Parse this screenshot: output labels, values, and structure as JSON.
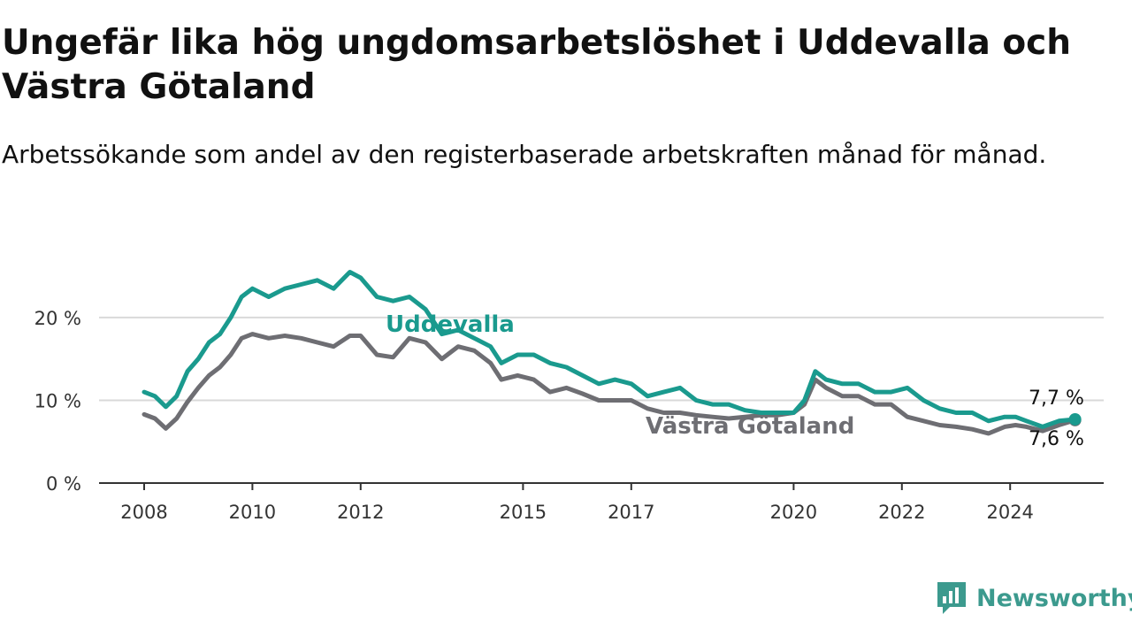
{
  "title": "Ungefär lika hög ungdomsarbetslöshet i Uddevalla och Västra Götaland",
  "subtitle": "Arbetssökande som andel av den registerbaserade arbetskraften månad för månad.",
  "brand": {
    "name": "Newsworthy",
    "color": "#3c9a8e"
  },
  "chart_data": {
    "type": "line",
    "x_unit": "year (decimal)",
    "xlim": [
      2007.0,
      2025.8
    ],
    "ylim": [
      0,
      25
    ],
    "grid": true,
    "x_ticks": [
      2008,
      2010,
      2012,
      2015,
      2017,
      2020,
      2022,
      2024
    ],
    "x_tick_labels": [
      "2008",
      "2010",
      "2012",
      "2015",
      "2017",
      "2020",
      "2022",
      "2024"
    ],
    "y_ticks": [
      0,
      10,
      20
    ],
    "y_tick_labels": [
      "0 %",
      "10 %",
      "20 %"
    ],
    "series": [
      {
        "name": "Uddevalla",
        "color": "#1a9a8e",
        "end_label": "7,7 %",
        "x": [
          2008.0,
          2008.2,
          2008.4,
          2008.6,
          2008.8,
          2009.0,
          2009.2,
          2009.4,
          2009.6,
          2009.8,
          2010.0,
          2010.3,
          2010.6,
          2010.9,
          2011.2,
          2011.5,
          2011.8,
          2012.0,
          2012.3,
          2012.6,
          2012.9,
          2013.2,
          2013.5,
          2013.8,
          2014.1,
          2014.4,
          2014.6,
          2014.9,
          2015.2,
          2015.5,
          2015.8,
          2016.1,
          2016.4,
          2016.7,
          2017.0,
          2017.3,
          2017.6,
          2017.9,
          2018.2,
          2018.5,
          2018.8,
          2019.1,
          2019.4,
          2019.7,
          2020.0,
          2020.2,
          2020.4,
          2020.6,
          2020.9,
          2021.2,
          2021.5,
          2021.8,
          2022.1,
          2022.4,
          2022.7,
          2023.0,
          2023.3,
          2023.6,
          2023.9,
          2024.1,
          2024.3,
          2024.6,
          2024.9,
          2025.2
        ],
        "values": [
          11.0,
          10.5,
          9.2,
          10.5,
          13.5,
          15.0,
          17.0,
          18.0,
          20.0,
          22.5,
          23.5,
          22.5,
          23.5,
          24.0,
          24.5,
          23.5,
          25.5,
          24.8,
          22.5,
          22.0,
          22.5,
          21.0,
          18.0,
          18.5,
          17.5,
          16.5,
          14.5,
          15.5,
          15.5,
          14.5,
          14.0,
          13.0,
          12.0,
          12.5,
          12.0,
          10.5,
          11.0,
          11.5,
          10.0,
          9.5,
          9.5,
          8.8,
          8.5,
          8.5,
          8.5,
          10.0,
          13.5,
          12.5,
          12.0,
          12.0,
          11.0,
          11.0,
          11.5,
          10.0,
          9.0,
          8.5,
          8.5,
          7.5,
          8.0,
          8.0,
          7.5,
          6.8,
          7.5,
          7.7
        ]
      },
      {
        "name": "Västra Götaland",
        "color": "#6e6e73",
        "end_label": "7,6 %",
        "x": [
          2008.0,
          2008.2,
          2008.4,
          2008.6,
          2008.8,
          2009.0,
          2009.2,
          2009.4,
          2009.6,
          2009.8,
          2010.0,
          2010.3,
          2010.6,
          2010.9,
          2011.2,
          2011.5,
          2011.8,
          2012.0,
          2012.3,
          2012.6,
          2012.9,
          2013.2,
          2013.5,
          2013.8,
          2014.1,
          2014.4,
          2014.6,
          2014.9,
          2015.2,
          2015.5,
          2015.8,
          2016.1,
          2016.4,
          2016.7,
          2017.0,
          2017.3,
          2017.6,
          2017.9,
          2018.2,
          2018.5,
          2018.8,
          2019.1,
          2019.4,
          2019.7,
          2020.0,
          2020.2,
          2020.4,
          2020.6,
          2020.9,
          2021.2,
          2021.5,
          2021.8,
          2022.1,
          2022.4,
          2022.7,
          2023.0,
          2023.3,
          2023.6,
          2023.9,
          2024.1,
          2024.3,
          2024.6,
          2024.9,
          2025.2
        ],
        "values": [
          8.3,
          7.8,
          6.6,
          7.8,
          9.8,
          11.5,
          13.0,
          14.0,
          15.5,
          17.5,
          18.0,
          17.5,
          17.8,
          17.5,
          17.0,
          16.5,
          17.8,
          17.8,
          15.5,
          15.2,
          17.5,
          17.0,
          15.0,
          16.5,
          16.0,
          14.5,
          12.5,
          13.0,
          12.5,
          11.0,
          11.5,
          10.8,
          10.0,
          10.0,
          10.0,
          9.0,
          8.5,
          8.5,
          8.2,
          8.0,
          7.8,
          8.0,
          8.2,
          8.2,
          8.5,
          9.5,
          12.5,
          11.5,
          10.5,
          10.5,
          9.5,
          9.5,
          8.0,
          7.5,
          7.0,
          6.8,
          6.5,
          6.0,
          6.8,
          7.0,
          6.8,
          6.3,
          7.0,
          7.6
        ]
      }
    ]
  }
}
